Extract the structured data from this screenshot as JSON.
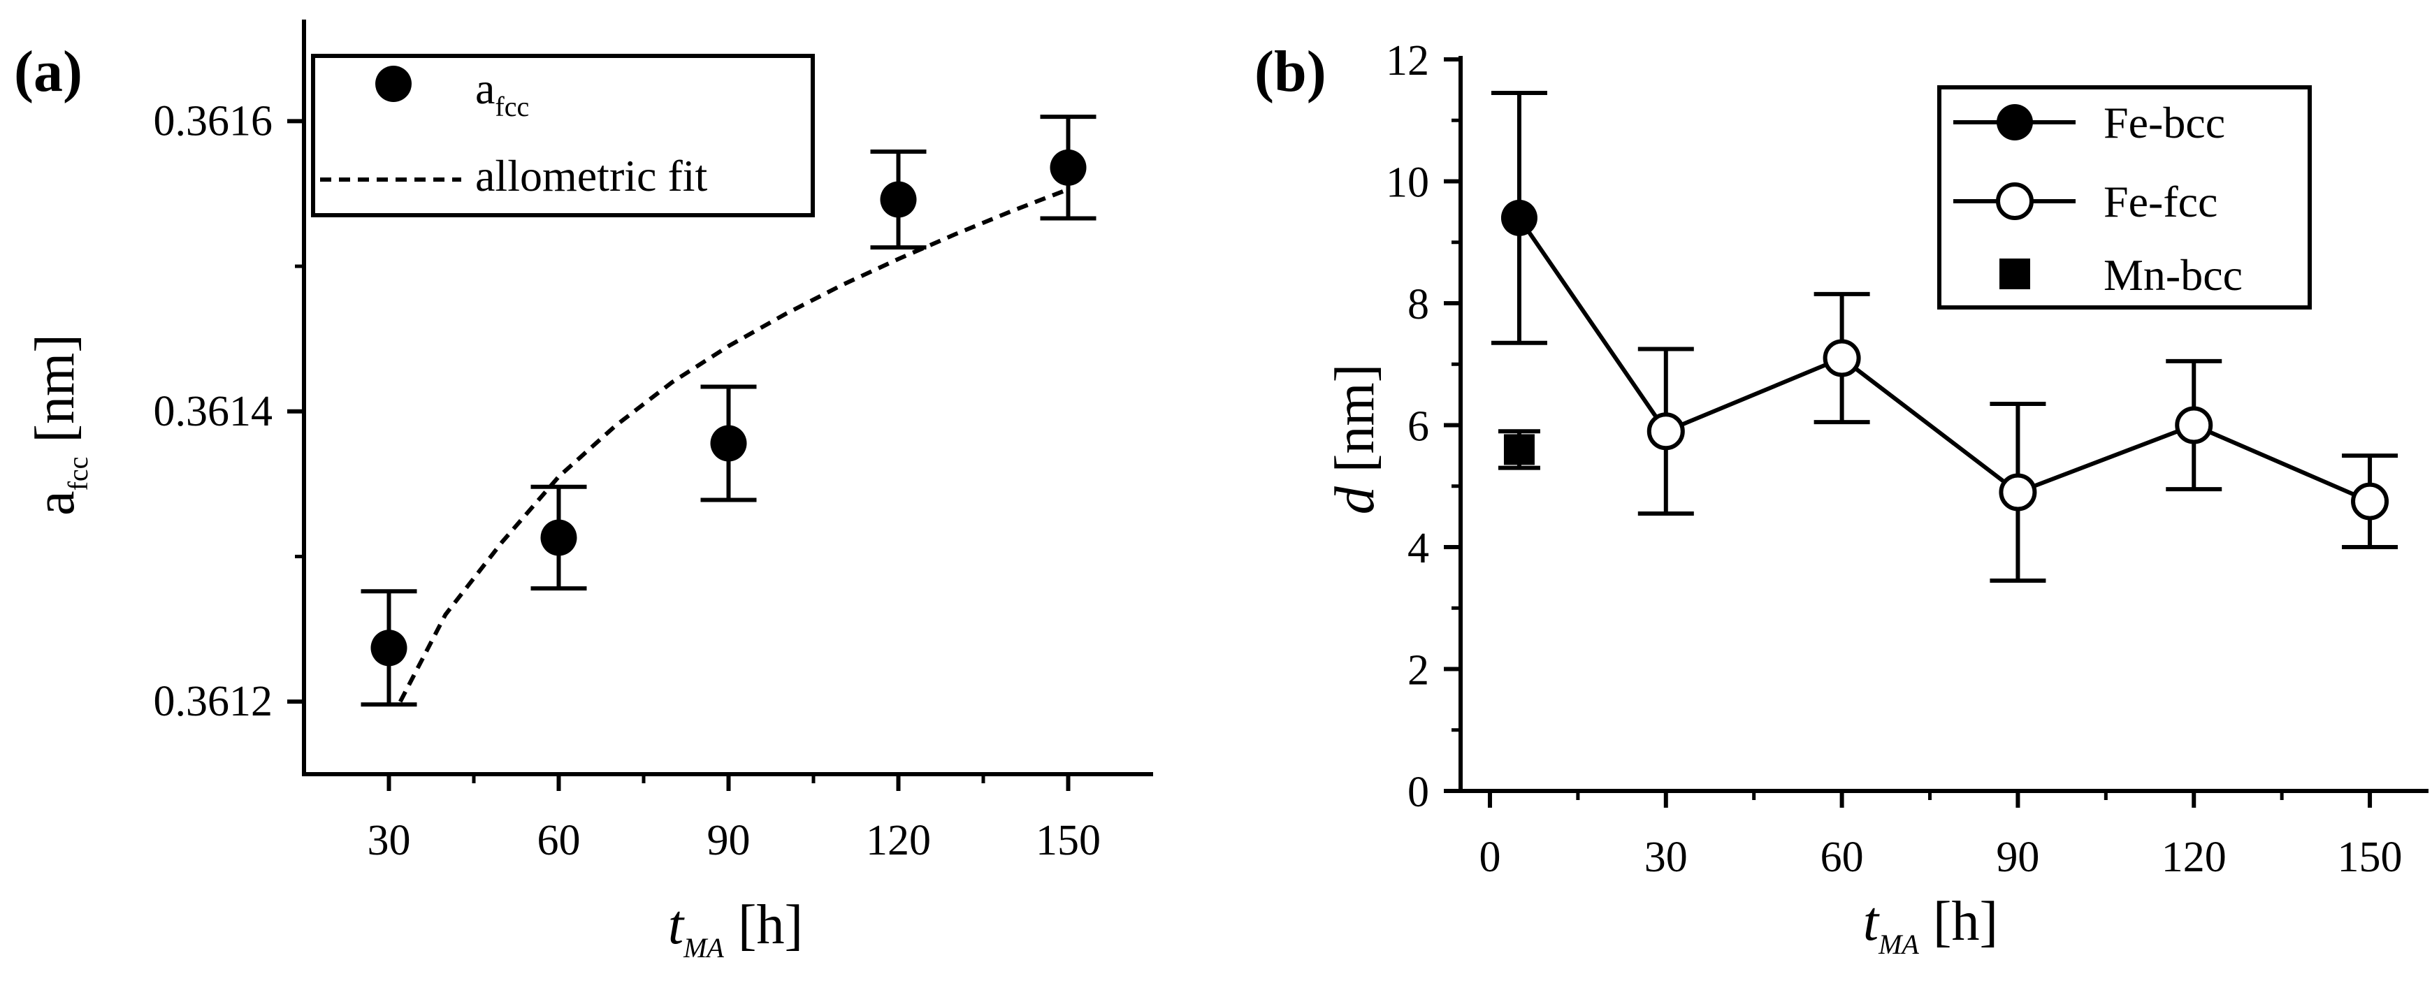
{
  "chart_data": [
    {
      "panel": "(a)",
      "type": "scatter",
      "xlabel": {
        "main": "t",
        "sub": "MA",
        "unit": " [h]"
      },
      "ylabel": {
        "main": "a",
        "sub": "fcc",
        "unit": " [nm]"
      },
      "xlim": [
        15,
        165
      ],
      "ylim": [
        0.36115,
        0.36167
      ],
      "xticks": [
        30,
        60,
        90,
        120,
        150
      ],
      "xtick_labels": [
        "30",
        "60",
        "90",
        "120",
        "150"
      ],
      "yticks": [
        0.3612,
        0.3614,
        0.3616
      ],
      "ytick_labels": [
        "0.3612",
        "0.3614",
        "0.3616"
      ],
      "legend": [
        {
          "label_main": "a",
          "label_sub": "fcc",
          "marker": "filled-circle"
        },
        {
          "label": "allometric fit",
          "line": "dashed"
        }
      ],
      "series": [
        {
          "name": "afcc",
          "marker": "filled-circle",
          "x": [
            30,
            60,
            90,
            120,
            150
          ],
          "y": [
            0.361237,
            0.361313,
            0.361378,
            0.361546,
            0.361568
          ],
          "err": [
            3.9e-05,
            3.5e-05,
            3.9e-05,
            3.3e-05,
            3.5e-05
          ]
        },
        {
          "name": "allometric fit",
          "line": "dashed",
          "x": [
            32,
            40,
            50,
            60,
            70,
            80,
            90,
            100,
            110,
            120,
            130,
            140,
            150
          ],
          "y": [
            0.3612,
            0.36126,
            0.36131,
            0.361355,
            0.36139,
            0.36142,
            0.361445,
            0.361467,
            0.361487,
            0.361505,
            0.361522,
            0.361538,
            0.361553
          ]
        }
      ]
    },
    {
      "panel": "(b)",
      "type": "line",
      "xlabel": {
        "main": "t",
        "sub": "MA",
        "unit": " [h]"
      },
      "ylabel": {
        "main": "d",
        "unit": " [nm]"
      },
      "xlim": [
        -5,
        160
      ],
      "ylim": [
        0,
        12
      ],
      "xticks": [
        0,
        30,
        60,
        90,
        120,
        150
      ],
      "xtick_labels": [
        "0",
        "30",
        "60",
        "90",
        "120",
        "150"
      ],
      "yticks": [
        0,
        2,
        4,
        6,
        8,
        10,
        12
      ],
      "ytick_labels": [
        "0",
        "2",
        "4",
        "6",
        "8",
        "10",
        "12"
      ],
      "legend": [
        {
          "label": "Fe-bcc",
          "marker": "filled-circle"
        },
        {
          "label": "Fe-fcc",
          "marker": "open-circle"
        },
        {
          "label": "Mn-bcc",
          "marker": "filled-square"
        }
      ],
      "series": [
        {
          "name": "Fe-bcc",
          "marker": "filled-circle",
          "x": [
            5
          ],
          "y": [
            9.4
          ],
          "err": [
            2.05
          ]
        },
        {
          "name": "Fe-fcc",
          "marker": "open-circle",
          "x": [
            30,
            60,
            90,
            120,
            150
          ],
          "y": [
            5.9,
            7.1,
            4.9,
            6.0,
            4.75
          ],
          "err": [
            1.35,
            1.05,
            1.45,
            1.05,
            0.75
          ]
        },
        {
          "name": "Mn-bcc",
          "marker": "filled-square",
          "x": [
            5
          ],
          "y": [
            5.6
          ],
          "err": [
            0.3
          ]
        }
      ]
    }
  ]
}
